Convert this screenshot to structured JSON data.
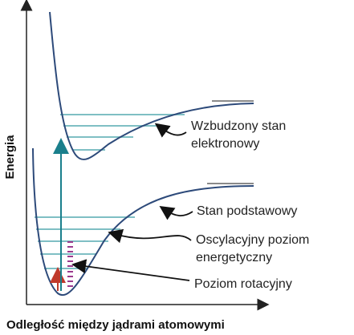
{
  "axes": {
    "y_label": "Energia",
    "x_label": "Odległość między jądrami atomowymi"
  },
  "labels": {
    "excited_line1": "Wzbudzony stan",
    "excited_line2": "elektronowy",
    "ground": "Stan podstawowy",
    "vibrational_line1": "Oscylacyjny poziom",
    "vibrational_line2": "energetyczny",
    "rotational": "Poziom rotacyjny"
  },
  "colors": {
    "curve": "#2d4a7a",
    "vibrational_level": "#7fbfc4",
    "dissociation_level": "#8a8a8a",
    "rotational_level": "#9b3a8e",
    "transition_arrow": "#1a7f8c",
    "small_arrow": "#c0392b",
    "pointer": "#111111"
  },
  "counts": {
    "excited_vibrational_levels": 4,
    "ground_vibrational_levels": 5,
    "rotational_levels": 10
  }
}
